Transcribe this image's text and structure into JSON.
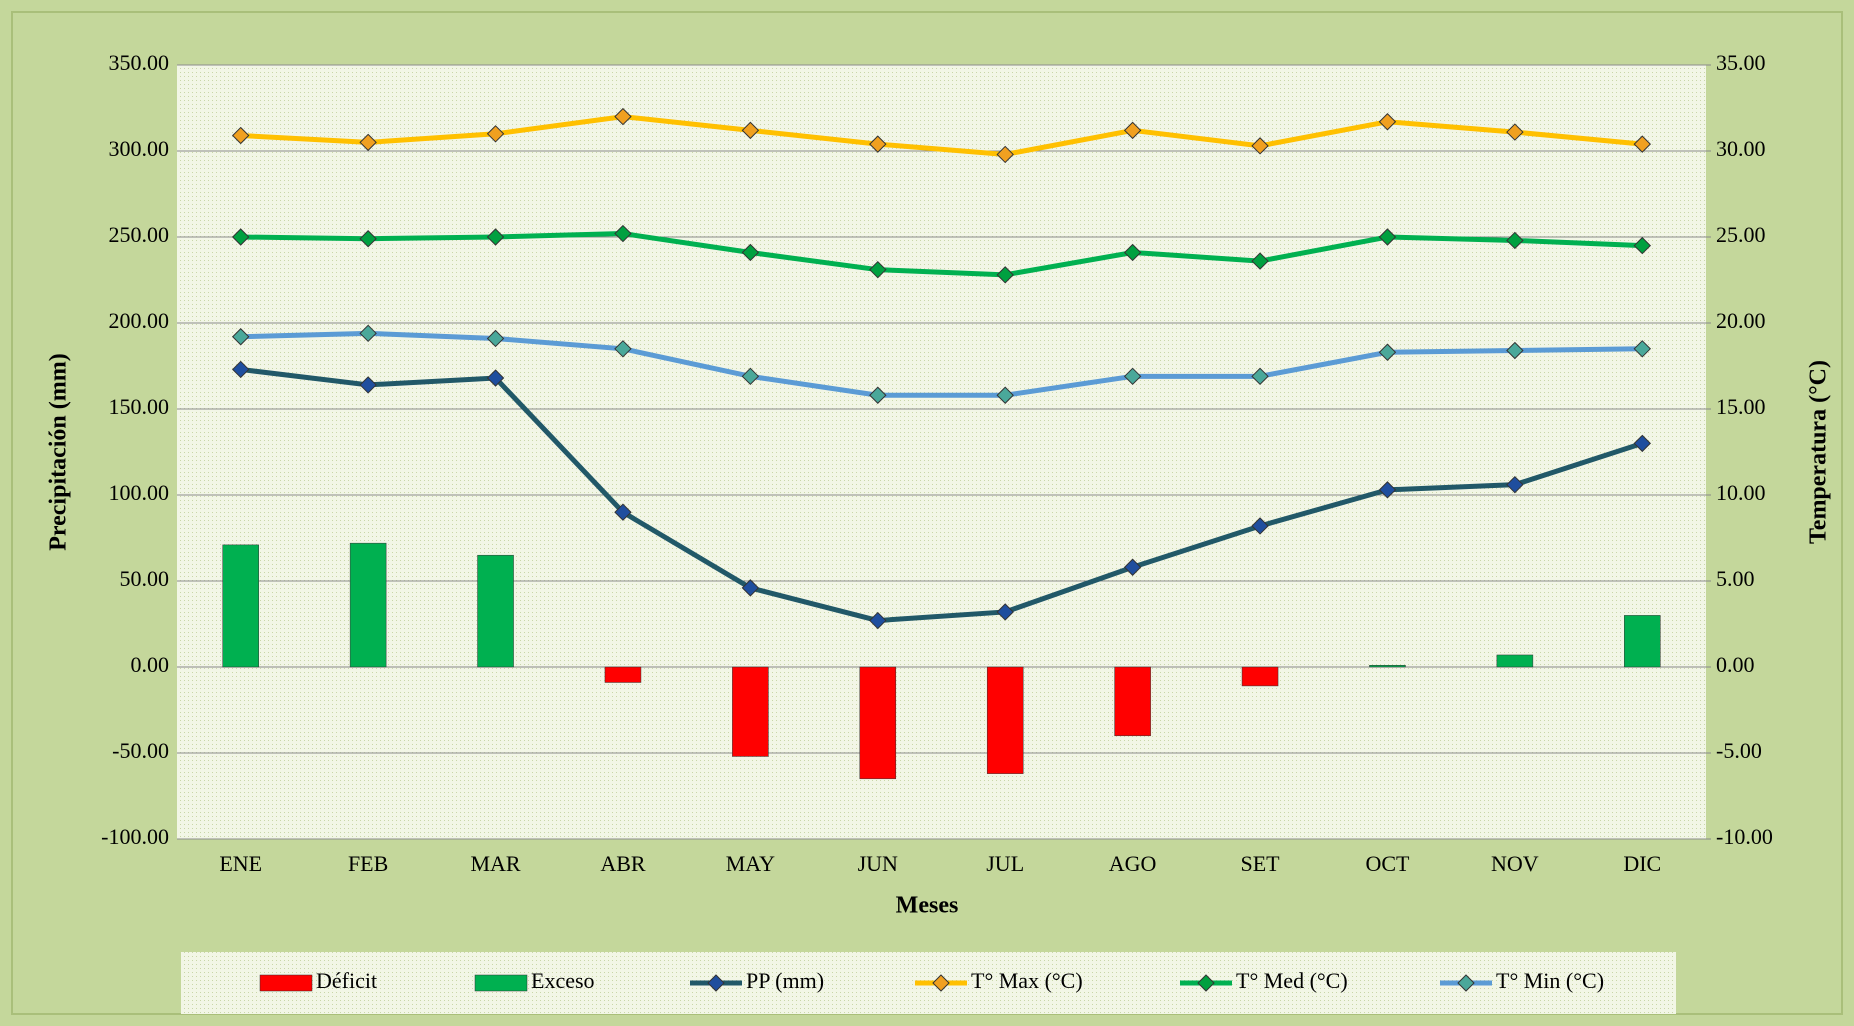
{
  "chart_data": {
    "type": "combo",
    "xlabel": "Meses",
    "ylabel": "Precipitación (mm)",
    "y2label": "Temperatura  (°C)",
    "categories": [
      "ENE",
      "FEB",
      "MAR",
      "ABR",
      "MAY",
      "JUN",
      "JUL",
      "AGO",
      "SET",
      "OCT",
      "NOV",
      "DIC"
    ],
    "series": [
      {
        "name": "Déficit",
        "kind": "bar",
        "color": "#ff0000",
        "values": [
          0,
          0,
          0,
          -9,
          -52,
          -65,
          -62,
          -40,
          -11,
          0,
          0,
          0
        ]
      },
      {
        "name": "Exceso",
        "kind": "bar",
        "color": "#00b050",
        "values": [
          71,
          72,
          65,
          0,
          0,
          0,
          0,
          0,
          0,
          1,
          7,
          30
        ]
      },
      {
        "name": "PP (mm)",
        "kind": "line",
        "color": "#215868",
        "marker_color": "#1f4e9e",
        "values": [
          173,
          164,
          168,
          90,
          46,
          27,
          32,
          58,
          82,
          103,
          106,
          130
        ]
      },
      {
        "name": "T° Max (°C)",
        "kind": "line",
        "axis": "y2",
        "color": "#ffc000",
        "marker_color": "#f0a020",
        "values": [
          30.9,
          30.5,
          31.0,
          32.0,
          31.2,
          30.4,
          29.8,
          31.2,
          30.3,
          31.7,
          31.1,
          30.4
        ]
      },
      {
        "name": "T° Med (°C)",
        "kind": "line",
        "axis": "y2",
        "color": "#00b050",
        "marker_color": "#00a040",
        "values": [
          25.0,
          24.9,
          25.0,
          25.2,
          24.1,
          23.1,
          22.8,
          24.1,
          23.6,
          25.0,
          24.8,
          24.5
        ]
      },
      {
        "name": "T° Min (°C)",
        "kind": "line",
        "axis": "y2",
        "color": "#5b9bd5",
        "marker_color": "#4aa89a",
        "values": [
          19.2,
          19.4,
          19.1,
          18.5,
          16.9,
          15.8,
          15.8,
          16.9,
          16.9,
          18.3,
          18.4,
          18.5
        ]
      }
    ],
    "ylim": [
      -100,
      350
    ],
    "yticks": [
      {
        "value": -100,
        "label": "-100.00"
      },
      {
        "value": -50,
        "label": "-50.00"
      },
      {
        "value": 0,
        "label": "0.00"
      },
      {
        "value": 50,
        "label": "50.00"
      },
      {
        "value": 100,
        "label": "100.00"
      },
      {
        "value": 150,
        "label": "150.00"
      },
      {
        "value": 200,
        "label": "200.00"
      },
      {
        "value": 250,
        "label": "250.00"
      },
      {
        "value": 300,
        "label": "300.00"
      },
      {
        "value": 350,
        "label": "350.00"
      }
    ],
    "y2lim": [
      -10,
      35
    ],
    "y2ticks": [
      {
        "value": -10,
        "label": "-10.00"
      },
      {
        "value": -5,
        "label": "-5.00"
      },
      {
        "value": 0,
        "label": "0.00"
      },
      {
        "value": 5,
        "label": "5.00"
      },
      {
        "value": 10,
        "label": "10.00"
      },
      {
        "value": 15,
        "label": "15.00"
      },
      {
        "value": 20,
        "label": "20.00"
      },
      {
        "value": 25,
        "label": "25.00"
      },
      {
        "value": 30,
        "label": "30.00"
      },
      {
        "value": 35,
        "label": "35.00"
      }
    ],
    "grid": true,
    "legend": "bottom"
  }
}
